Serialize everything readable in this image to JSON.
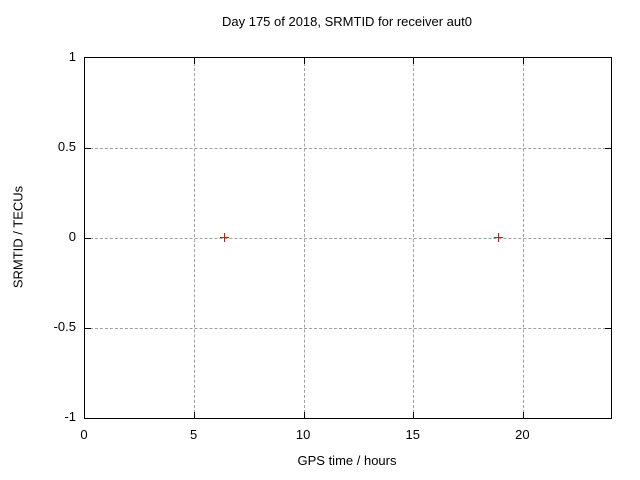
{
  "chart_data": {
    "type": "scatter",
    "title": "Day 175 of 2018, SRMTID for receiver aut0",
    "xlabel": "GPS time / hours",
    "ylabel": "SRMTID / TECUs",
    "xlim": [
      0,
      24
    ],
    "ylim": [
      -1,
      1
    ],
    "x_ticks": [
      0,
      5,
      10,
      15,
      20
    ],
    "y_ticks": [
      -1,
      -0.5,
      0,
      0.5,
      1
    ],
    "grid": "dashed, at major ticks",
    "legend": "none",
    "series": [
      {
        "name": "SRMTID",
        "marker": "plus",
        "color": "#ff0000",
        "points": [
          {
            "x": 6.4,
            "y": 0
          },
          {
            "x": 18.9,
            "y": 0
          }
        ]
      }
    ]
  },
  "colors": {
    "background": "#ffffff",
    "plot_border": "#000000",
    "grid": "#a0a0a0",
    "text": "#000000",
    "marker": "#ff0000"
  }
}
